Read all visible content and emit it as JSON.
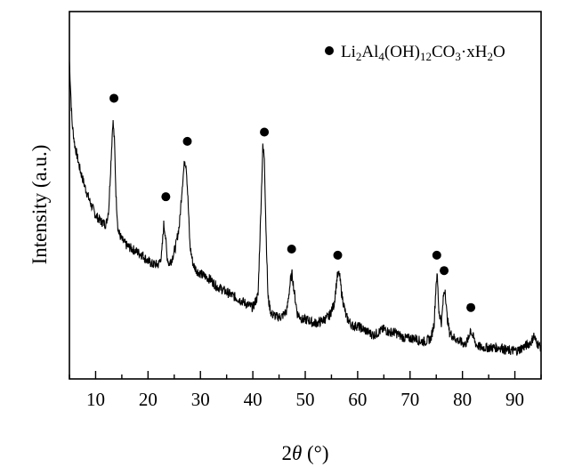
{
  "chart_data": {
    "type": "line",
    "xlabel": "2θ (°)",
    "xlabel_parts": {
      "prefix": "2",
      "symbol": "θ",
      "suffix": " (°)"
    },
    "ylabel": "Intensity (a.u.)",
    "xlim": [
      5,
      95
    ],
    "x_ticks": [
      10,
      20,
      30,
      40,
      50,
      60,
      70,
      80,
      90
    ],
    "y_ticks_labeled": false,
    "grid": false,
    "legend": {
      "placement": "top-right",
      "label": "Li2Al4(OH)12CO3·xH2O",
      "label_parts": [
        {
          "t": "Li",
          "sub": false
        },
        {
          "t": "2",
          "sub": true
        },
        {
          "t": "Al",
          "sub": false
        },
        {
          "t": "4",
          "sub": true
        },
        {
          "t": "(OH)",
          "sub": false
        },
        {
          "t": "12",
          "sub": true
        },
        {
          "t": "CO",
          "sub": false
        },
        {
          "t": "3",
          "sub": true
        },
        {
          "t": "·xH",
          "sub": false
        },
        {
          "t": "2",
          "sub": true
        },
        {
          "t": "O",
          "sub": false
        }
      ],
      "marker": "filled-circle"
    },
    "series": [
      {
        "line_color": "#000000",
        "x": [
          5,
          5.5,
          6,
          7,
          8,
          9,
          10,
          11,
          12,
          12.5,
          13,
          13.3,
          13.6,
          13.9,
          14.3,
          15,
          16,
          17,
          18,
          19,
          20,
          21,
          22,
          22.6,
          23,
          23.3,
          23.6,
          24,
          24.6,
          25.3,
          26,
          26.5,
          27,
          27.3,
          27.6,
          28,
          28.6,
          29.3,
          30,
          31,
          32,
          33,
          34,
          35,
          36,
          37,
          38,
          39,
          40,
          41,
          41.5,
          41.9,
          42.2,
          42.5,
          42.9,
          43.5,
          44.5,
          45.5,
          46.5,
          47.2,
          47.5,
          47.9,
          48.5,
          49.5,
          50.5,
          51.5,
          52.5,
          53.5,
          54.5,
          55.5,
          56.1,
          56.5,
          57,
          57.8,
          59,
          60,
          61,
          62,
          63,
          64,
          65,
          66,
          67,
          68,
          69,
          70,
          71,
          72,
          73,
          74,
          74.6,
          75,
          75.2,
          75.5,
          76,
          76.4,
          76.7,
          77,
          77.5,
          78.5,
          79.5,
          80.5,
          81.2,
          81.5,
          81.9,
          82.6,
          83.5,
          84.5,
          85.5,
          86.5,
          87.5,
          88.5,
          89.5,
          90.5,
          91.5,
          92.5,
          93.2,
          93.6,
          94,
          95
        ],
        "y": [
          98,
          78,
          71,
          63,
          57,
          52,
          48,
          46,
          45,
          50,
          68,
          79,
          72,
          54,
          43,
          40,
          38,
          37,
          36,
          35,
          33,
          32,
          32,
          35,
          45,
          42,
          35,
          32,
          34,
          38,
          45,
          57,
          66,
          64,
          54,
          38,
          32,
          30,
          29,
          28,
          27,
          25,
          24,
          23,
          22,
          21,
          20,
          19,
          18,
          22,
          48,
          70,
          67,
          44,
          21,
          16,
          15,
          15,
          17,
          27,
          29,
          23,
          16,
          14,
          14,
          13,
          13,
          14,
          15,
          19,
          28,
          29,
          22,
          15,
          12,
          12,
          11,
          10,
          9,
          10,
          11,
          10,
          10,
          9,
          8,
          8,
          8,
          7,
          7,
          8,
          13,
          27,
          28,
          17,
          13,
          22,
          24,
          16,
          10,
          8,
          7,
          6,
          8,
          11,
          9,
          6,
          5,
          5,
          5,
          5,
          5,
          4,
          4,
          4,
          5,
          6,
          7,
          9,
          7,
          5
        ]
      }
    ],
    "ylim": [
      0,
      100
    ],
    "peak_markers": [
      {
        "x": 13.5,
        "y": 86
      },
      {
        "x": 23.4,
        "y": 54
      },
      {
        "x": 27.5,
        "y": 72
      },
      {
        "x": 42.2,
        "y": 75
      },
      {
        "x": 47.4,
        "y": 37
      },
      {
        "x": 56.2,
        "y": 35
      },
      {
        "x": 75.1,
        "y": 35
      },
      {
        "x": 76.5,
        "y": 30
      },
      {
        "x": 81.6,
        "y": 18
      }
    ]
  }
}
